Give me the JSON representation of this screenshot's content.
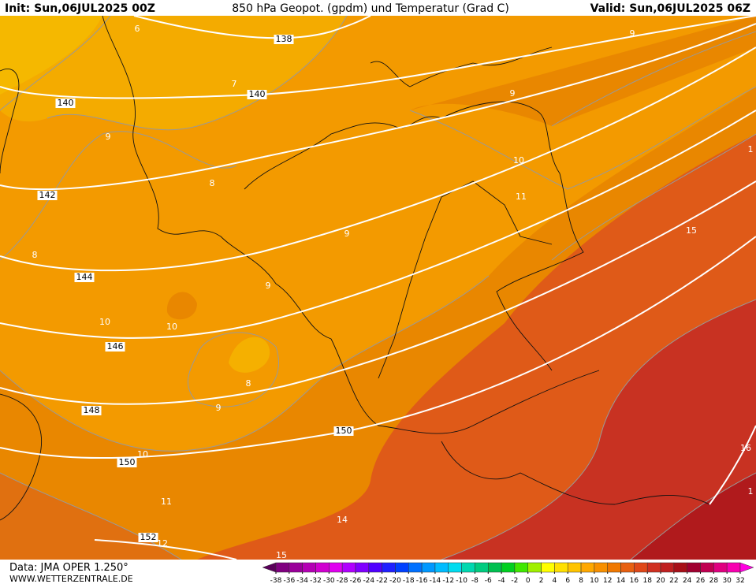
{
  "header": {
    "init": "Init: Sun,06JUL2025 00Z",
    "title": "850 hPa Geopot. (gpdm) und Temperatur (Grad C)",
    "valid": "Valid: Sun,06JUL2025 06Z"
  },
  "map": {
    "geopotential_labels": [
      138,
      140,
      140,
      142,
      144,
      146,
      148,
      150,
      150,
      152
    ],
    "temperature_labels": [
      6,
      7,
      9,
      9,
      9,
      8,
      10,
      11,
      9,
      8,
      15,
      9,
      10,
      10,
      8,
      9,
      10,
      11,
      16,
      14,
      12,
      15,
      1,
      1
    ]
  },
  "footer": {
    "data": "Data: JMA OPER 1.250°",
    "site": "WWW.WETTERZENTRALE.DE"
  },
  "legend": {
    "ticks": [
      -38,
      -36,
      -34,
      -32,
      -30,
      -28,
      -26,
      -24,
      -22,
      -20,
      -18,
      -16,
      -14,
      -12,
      -10,
      -8,
      -6,
      -4,
      -2,
      0,
      2,
      4,
      6,
      8,
      10,
      12,
      14,
      16,
      18,
      20,
      22,
      24,
      26,
      28,
      30,
      32
    ]
  }
}
